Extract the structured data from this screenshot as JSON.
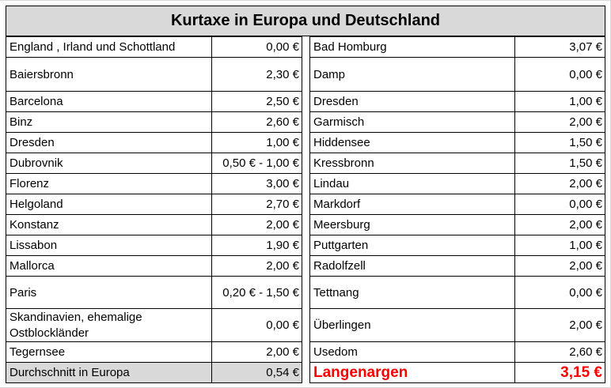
{
  "title": "Kurtaxe in Europa und Deutschland",
  "left_rows": [
    {
      "place": "England , Irland und Schottland",
      "fee": "0,00 €"
    },
    {
      "place": "Baiersbronn",
      "fee": "2,30 €"
    },
    {
      "place": "Barcelona",
      "fee": "2,50 €"
    },
    {
      "place": "Binz",
      "fee": "2,60 €"
    },
    {
      "place": "Dresden",
      "fee": "1,00 €"
    },
    {
      "place": "Dubrovnik",
      "fee": "0,50 € - 1,00 €"
    },
    {
      "place": "Florenz",
      "fee": "3,00 €"
    },
    {
      "place": "Helgoland",
      "fee": "2,70 €"
    },
    {
      "place": "Konstanz",
      "fee": "2,00 €"
    },
    {
      "place": "Lissabon",
      "fee": "1,90 €"
    },
    {
      "place": "Mallorca",
      "fee": "2,00 €"
    },
    {
      "place": "Paris",
      "fee": "0,20 € - 1,50 €"
    },
    {
      "place": "Skandinavien, ehemalige Ostblockländer",
      "fee": "0,00 €"
    },
    {
      "place": "Tegernsee",
      "fee": "2,00 €"
    },
    {
      "place": "Durchschnitt in Europa",
      "fee": "0,54 €"
    }
  ],
  "right_rows": [
    {
      "place": "Bad Homburg",
      "fee": "3,07 €"
    },
    {
      "place": "Damp",
      "fee": "0,00 €"
    },
    {
      "place": "Dresden",
      "fee": "1,00 €"
    },
    {
      "place": "Garmisch",
      "fee": "2,00 €"
    },
    {
      "place": "Hiddensee",
      "fee": "1,50 €"
    },
    {
      "place": "Kressbronn",
      "fee": "1,50 €"
    },
    {
      "place": "Lindau",
      "fee": "2,00 €"
    },
    {
      "place": "Markdorf",
      "fee": "0,00 €"
    },
    {
      "place": "Meersburg",
      "fee": "2,00 €"
    },
    {
      "place": "Puttgarten",
      "fee": "1,00 €"
    },
    {
      "place": "Radolfzell",
      "fee": "2,00 €"
    },
    {
      "place": "Tettnang",
      "fee": "0,00 €"
    },
    {
      "place": "Überlingen",
      "fee": "2,00 €"
    },
    {
      "place": "Usedom",
      "fee": "2,60 €"
    },
    {
      "place": "Langenargen",
      "fee": "3,15 €"
    }
  ],
  "colors": {
    "header_fill": "#d9d9d9",
    "average_fill": "#d9d9d9",
    "highlight_text": "#ff0000"
  }
}
